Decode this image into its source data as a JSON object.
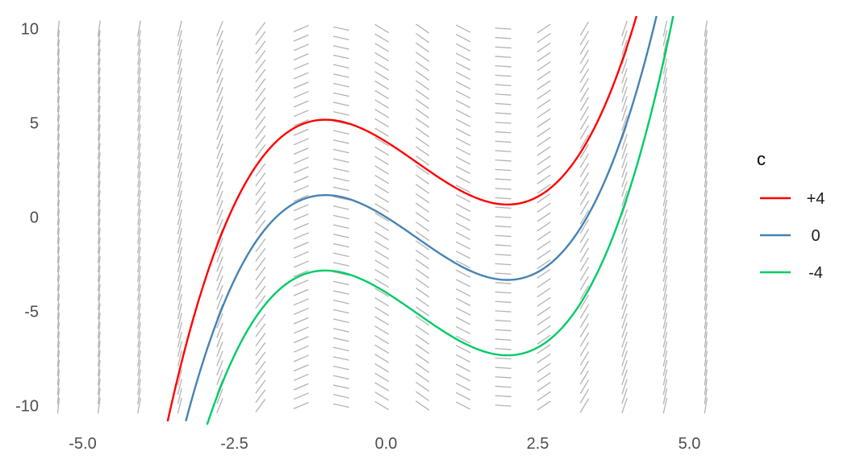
{
  "chart_data": {
    "type": "line",
    "title": "",
    "xlabel": "",
    "ylabel": "",
    "xlim": [
      -5.2,
      5.2
    ],
    "ylim": [
      -10,
      10
    ],
    "x_ticks": [
      -5.0,
      -2.5,
      0.0,
      2.5,
      5.0
    ],
    "x_tick_labels": [
      "-5.0",
      "-2.5",
      "0.0",
      "2.5",
      "5.0"
    ],
    "y_ticks": [
      -10,
      -5,
      0,
      5,
      10
    ],
    "y_tick_labels": [
      "-10",
      "-5",
      "0",
      "5",
      "10"
    ],
    "grid": false,
    "slope_field": {
      "description_of_slope": "dy/dx = x^2 - x - 2",
      "x_columns": [
        -5.4,
        -4.73,
        -4.07,
        -3.4,
        -2.74,
        -2.07,
        -1.4,
        -0.74,
        -0.07,
        0.6,
        1.27,
        1.93,
        2.6,
        3.27,
        3.93,
        4.6,
        5.27
      ],
      "y_rows_from": -10,
      "y_rows_to": 10,
      "y_rows_step": 0.5,
      "color": "#b3b3b3"
    },
    "series": [
      {
        "name": "+4",
        "c": 4,
        "color": "#ff0000",
        "x": [
          -3.6,
          -3.0,
          -2.5,
          -2.0,
          -1.5,
          -1.0,
          -0.5,
          0.0,
          0.5,
          1.0,
          1.5,
          2.0,
          2.5,
          3.0,
          3.5,
          4.0,
          4.2
        ],
        "y": [
          -10.8,
          -3.5,
          1.33,
          4.0,
          4.97,
          5.17,
          4.54,
          4.0,
          2.79,
          1.83,
          1.0,
          0.67,
          1.08,
          2.5,
          5.17,
          9.33,
          11.4
        ]
      },
      {
        "name": "0",
        "c": 0,
        "color": "#4682b4",
        "x": [
          -3.3,
          -3.0,
          -2.5,
          -2.0,
          -1.5,
          -1.0,
          -0.5,
          0.0,
          0.5,
          1.0,
          1.5,
          2.0,
          2.5,
          3.0,
          3.5,
          4.0,
          4.55
        ],
        "y": [
          -10.8,
          -7.5,
          -2.67,
          0.0,
          0.97,
          1.17,
          0.54,
          0.0,
          -1.21,
          -2.17,
          -3.0,
          -3.33,
          -2.92,
          -1.5,
          1.17,
          5.33,
          11.3
        ]
      },
      {
        "name": "-4",
        "c": -4,
        "color": "#00cc66",
        "x": [
          -2.95,
          -2.5,
          -2.0,
          -1.5,
          -1.0,
          -0.5,
          0.0,
          0.5,
          1.0,
          1.5,
          2.0,
          2.5,
          3.0,
          3.5,
          4.0,
          4.5,
          4.8
        ],
        "y": [
          -10.8,
          -6.67,
          -4.0,
          -3.03,
          -2.83,
          -3.46,
          -4.0,
          -5.21,
          -6.17,
          -7.0,
          -7.33,
          -6.92,
          -5.5,
          -2.83,
          1.33,
          7.0,
          10.8
        ]
      }
    ],
    "legend": {
      "title": "c",
      "placement": "right",
      "entries": [
        {
          "label": "+4",
          "color": "#ff0000"
        },
        {
          "label": "0",
          "color": "#4682b4"
        },
        {
          "label": "-4",
          "color": "#00cc66"
        }
      ]
    }
  }
}
